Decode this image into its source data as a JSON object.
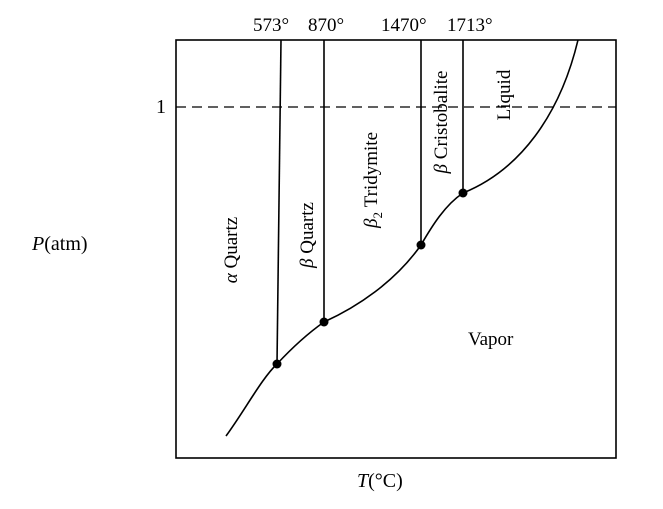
{
  "axes": {
    "x_label_var": "T",
    "x_label_unit": "(°C)",
    "y_label_var": "P",
    "y_label_unit": "(atm)",
    "y_tick": "1"
  },
  "transitions": [
    {
      "label": "573°",
      "between": [
        "α Quartz",
        "β Quartz"
      ]
    },
    {
      "label": "870°",
      "between": [
        "β Quartz",
        "β2 Tridymite"
      ]
    },
    {
      "label": "1470°",
      "between": [
        "β2 Tridymite",
        "β Cristobalite"
      ]
    },
    {
      "label": "1713°",
      "between": [
        "β Cristobalite",
        "Liquid"
      ]
    }
  ],
  "regions": {
    "alpha_quartz": {
      "symbol": "α",
      "name": "Quartz"
    },
    "beta_quartz": {
      "symbol": "β",
      "name": "Quartz"
    },
    "beta2_tridymite": {
      "symbol": "β",
      "subscript": "2",
      "name": "Tridymite"
    },
    "beta_cristobalite": {
      "symbol": "β",
      "name": "Cristobalite"
    },
    "liquid": {
      "name": "Liquid"
    },
    "vapor": {
      "name": "Vapor"
    }
  },
  "triple_points": 4,
  "reference_line": "dashed at P = 1 atm"
}
